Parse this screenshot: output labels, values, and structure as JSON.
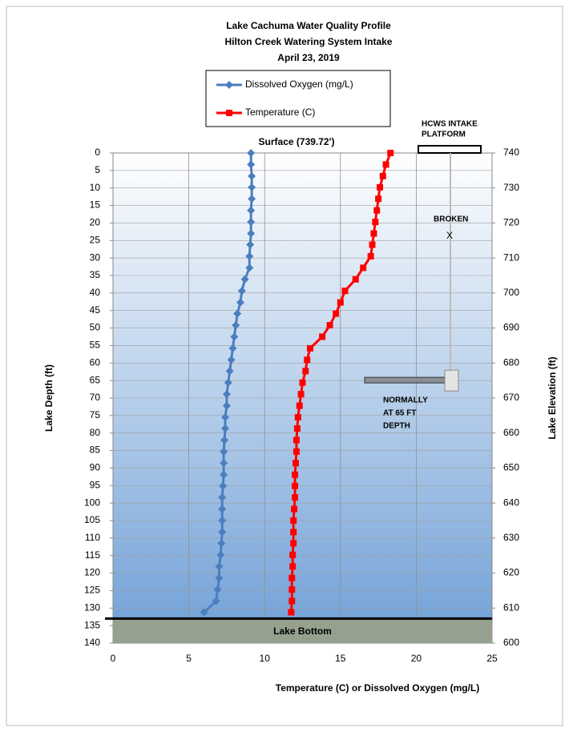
{
  "chart_data": {
    "type": "profile",
    "title": [
      "Lake Cachuma Water Quality Profile",
      "Hilton Creek Watering System Intake",
      "April 23, 2019"
    ],
    "xlabel": "Temperature (C) or Dissolved Oxygen (mg/L)",
    "ylabel": "Lake Depth (ft)",
    "y2label": "Lake Elevation (ft)",
    "xlim": [
      0,
      25
    ],
    "xticks": [
      0,
      5,
      10,
      15,
      20,
      25
    ],
    "ylim": [
      0,
      140
    ],
    "yticks": [
      0,
      5,
      10,
      15,
      20,
      25,
      30,
      35,
      40,
      45,
      50,
      55,
      60,
      65,
      70,
      75,
      80,
      85,
      90,
      95,
      100,
      105,
      110,
      115,
      120,
      125,
      130,
      135,
      140
    ],
    "y2lim": [
      740,
      600
    ],
    "y2ticks": [
      740,
      730,
      720,
      710,
      700,
      690,
      680,
      670,
      660,
      650,
      640,
      630,
      620,
      610,
      600
    ],
    "grid": true,
    "depth": [
      0,
      3.3,
      6.6,
      9.8,
      13.1,
      16.4,
      19.7,
      23,
      26.2,
      29.5,
      32.8,
      36.1,
      39.4,
      42.7,
      45.9,
      49.2,
      52.5,
      55.8,
      59.1,
      62.3,
      65.6,
      68.9,
      72.2,
      75.5,
      78.7,
      82,
      85.3,
      88.6,
      91.9,
      95.1,
      98.4,
      101.7,
      105,
      108.3,
      111.5,
      114.8,
      118.1,
      121.4,
      124.7,
      128,
      131.2
    ],
    "series": [
      {
        "name": "Dissolved Oxygen (mg/L)",
        "color": "#4a7ebf",
        "marker": "diamond",
        "values": [
          9.1,
          9.1,
          9.15,
          9.15,
          9.15,
          9.1,
          9.1,
          9.1,
          9.05,
          9.0,
          9.0,
          8.7,
          8.5,
          8.4,
          8.2,
          8.1,
          8.0,
          7.9,
          7.8,
          7.7,
          7.6,
          7.5,
          7.5,
          7.4,
          7.4,
          7.35,
          7.3,
          7.3,
          7.3,
          7.25,
          7.2,
          7.2,
          7.2,
          7.2,
          7.15,
          7.1,
          7.0,
          7.0,
          6.9,
          6.8,
          6.0
        ]
      },
      {
        "name": "Temperature (C)",
        "color": "#ff0000",
        "marker": "square",
        "values": [
          18.3,
          18.0,
          17.8,
          17.6,
          17.5,
          17.4,
          17.3,
          17.2,
          17.1,
          17.0,
          16.5,
          16.0,
          15.3,
          15.0,
          14.7,
          14.3,
          13.8,
          13.0,
          12.8,
          12.7,
          12.5,
          12.4,
          12.3,
          12.2,
          12.15,
          12.1,
          12.1,
          12.05,
          12.0,
          12.0,
          12.0,
          11.95,
          11.9,
          11.9,
          11.9,
          11.85,
          11.85,
          11.8,
          11.8,
          11.8,
          11.75
        ]
      }
    ],
    "surface_label": "Surface (739.72')",
    "lake_bottom": {
      "label": "Lake Bottom",
      "depth": 133
    },
    "intake_depth": 65,
    "annotations": {
      "platform": [
        "HCWS INTAKE",
        "PLATFORM"
      ],
      "broken": "BROKEN",
      "broken_mark": "X",
      "normally": [
        "NORMALLY",
        "AT 65 FT",
        "DEPTH"
      ]
    }
  }
}
